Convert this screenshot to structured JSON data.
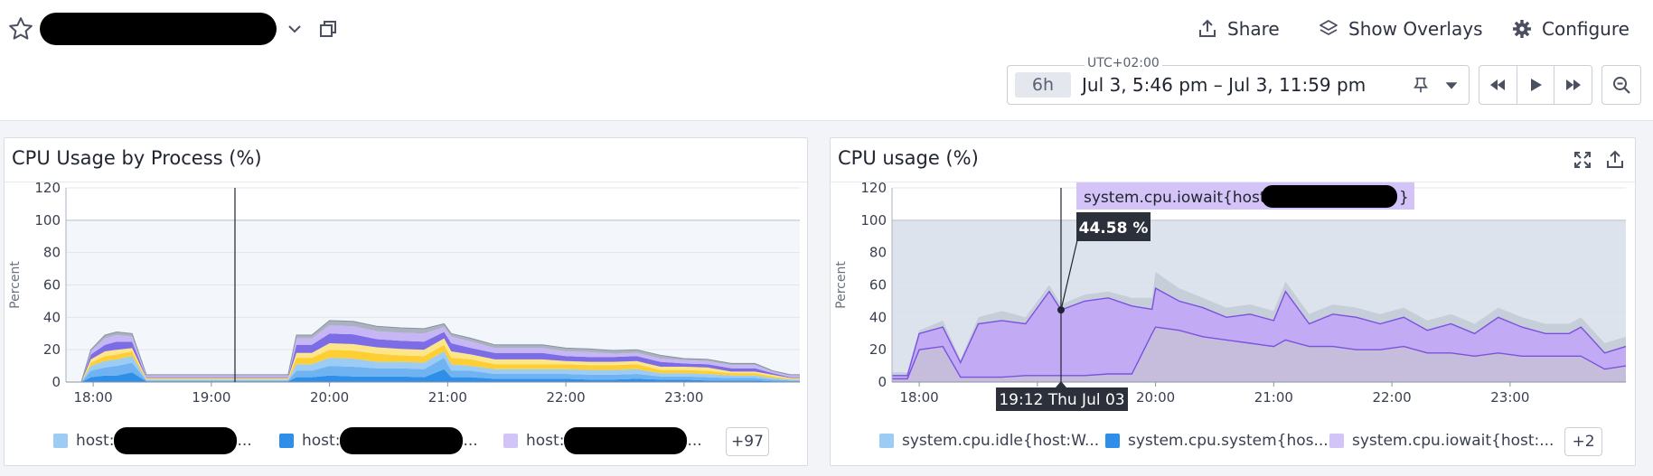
{
  "header": {
    "share_label": "Share",
    "overlays_label": "Show Overlays",
    "configure_label": "Configure"
  },
  "timeframe": {
    "timezone": "UTC+02:00",
    "range_chip": "6h",
    "range_text": "Jul 3, 5:46 pm – Jul 3, 11:59 pm"
  },
  "widget1": {
    "title": "CPU Usage by Process (%)",
    "legend": [
      {
        "prefix": "host:",
        "suffix": "...",
        "color": "#9ccbf3"
      },
      {
        "prefix": "host:",
        "suffix": "...",
        "color": "#2f8fe8"
      },
      {
        "prefix": "host:",
        "suffix": "...",
        "color": "#d3c4f7"
      }
    ],
    "more_label": "+97"
  },
  "widget2": {
    "title": "CPU usage (%)",
    "legend": [
      {
        "label": "system.cpu.idle{host:W...",
        "color": "#9ccbf3"
      },
      {
        "label": "system.cpu.system{hos...",
        "color": "#2f8fe8"
      },
      {
        "label": "system.cpu.iowait{host:...",
        "color": "#d3c4f7"
      }
    ],
    "more_label": "+2",
    "tooltip": {
      "series_prefix": "system.cpu.iowait{host",
      "series_suffix": "}",
      "value": "44.58 %",
      "time_label": "19:12 Thu Jul 03"
    }
  },
  "chart_data": [
    {
      "type": "area",
      "title": "CPU Usage by Process (%)",
      "ylabel": "Percent",
      "ylim": [
        0,
        120
      ],
      "yticks": [
        0,
        20,
        40,
        60,
        80,
        100,
        120
      ],
      "xticks": [
        "18:00",
        "19:00",
        "20:00",
        "21:00",
        "22:00",
        "23:00"
      ],
      "x": [
        17.77,
        17.9,
        17.98,
        18.1,
        18.2,
        18.33,
        18.45,
        18.7,
        19.0,
        19.3,
        19.5,
        19.65,
        19.72,
        19.85,
        20.0,
        20.2,
        20.4,
        20.6,
        20.8,
        20.97,
        21.03,
        21.2,
        21.4,
        21.6,
        21.8,
        22.0,
        22.2,
        22.4,
        22.6,
        22.8,
        23.0,
        23.2,
        23.4,
        23.6,
        23.75,
        23.9,
        23.98
      ],
      "series": [
        {
          "values": [
            0,
            0,
            3,
            4,
            4,
            6,
            0.5,
            0.5,
            0.5,
            0.5,
            0.5,
            0.5,
            3,
            3,
            4,
            3.5,
            3.5,
            3.5,
            3,
            8,
            3,
            3,
            2,
            2,
            2,
            2,
            1.5,
            1.5,
            2,
            1.5,
            1.5,
            1,
            1,
            1,
            0.5,
            0.5,
            0.5
          ]
        },
        {
          "values": [
            0,
            0,
            4,
            5,
            6,
            6,
            0.5,
            0.5,
            0.5,
            0.5,
            0.5,
            0.5,
            4,
            4,
            6,
            6,
            5,
            5,
            5,
            7,
            4,
            4,
            3,
            3,
            3,
            3,
            3,
            3,
            3,
            2,
            2,
            2,
            1.5,
            1.5,
            1,
            0.5,
            0.5
          ]
        },
        {
          "values": [
            0,
            0,
            3,
            4,
            4,
            4,
            0.5,
            0.5,
            0.5,
            0.5,
            0.5,
            0.5,
            4,
            4,
            5,
            5,
            4,
            4,
            4,
            4,
            4,
            3,
            3,
            3,
            3,
            3,
            3,
            3,
            3,
            2,
            2,
            2,
            1.5,
            1.5,
            1,
            0.5,
            0.5
          ]
        },
        {
          "values": [
            0,
            0,
            2,
            3,
            3,
            3,
            0.5,
            0.5,
            0.5,
            0.5,
            0.5,
            0.5,
            4,
            4,
            5,
            5,
            5,
            4,
            4,
            4,
            4,
            4,
            3,
            3,
            3,
            3,
            3,
            3,
            3,
            2,
            2,
            2,
            1.5,
            1.5,
            1,
            0.5,
            0.5
          ]
        },
        {
          "values": [
            0,
            0,
            2,
            3,
            3,
            2,
            0.5,
            0.5,
            0.5,
            0.5,
            0.5,
            0.5,
            3,
            3,
            4,
            4,
            4,
            4,
            4,
            4,
            4,
            3,
            3,
            3,
            3,
            2,
            2,
            2,
            2,
            2,
            2,
            2,
            1,
            1,
            1,
            0.5,
            0.5
          ]
        },
        {
          "values": [
            0,
            0,
            3,
            4,
            5,
            4,
            0.5,
            0.5,
            0.5,
            0.5,
            0.5,
            0.5,
            5,
            5,
            6,
            6,
            5,
            5,
            5,
            4,
            5,
            4,
            4,
            4,
            4,
            3,
            3,
            3,
            3,
            3,
            2,
            2,
            2,
            2,
            1,
            0.5,
            0.5
          ]
        },
        {
          "values": [
            0,
            0,
            2,
            4,
            4,
            3,
            1,
            1,
            1,
            1,
            1,
            1,
            4,
            4,
            5,
            5,
            5,
            5,
            5,
            3,
            4,
            4,
            3,
            3,
            3,
            3,
            3,
            2,
            2,
            2,
            2,
            2,
            2,
            2,
            1,
            1,
            1
          ]
        },
        {
          "values": [
            0,
            0,
            1,
            2,
            2,
            2,
            0.5,
            0.5,
            0.5,
            0.5,
            0.5,
            0.5,
            2,
            2,
            3,
            3,
            3,
            3,
            3,
            2,
            2,
            2,
            2,
            2,
            2,
            2,
            2,
            2,
            2,
            2,
            1,
            1,
            1,
            1,
            0.5,
            0.5,
            0.5
          ]
        }
      ],
      "colors": [
        "#2f8fe8",
        "#6fb3f2",
        "#9ccbf3",
        "#fdcf35",
        "#fde68a",
        "#7c6ce6",
        "#c7b6f5",
        "#aab2c0"
      ],
      "cursor_x": 19.2
    },
    {
      "type": "area",
      "title": "CPU usage (%)",
      "ylabel": "Percent",
      "ylim": [
        0,
        120
      ],
      "yticks": [
        0,
        20,
        40,
        60,
        80,
        100,
        120
      ],
      "xticks": [
        "18:00",
        "19:00",
        "20:00",
        "21:00",
        "22:00",
        "23:00"
      ],
      "x": [
        17.77,
        17.9,
        18.0,
        18.2,
        18.35,
        18.5,
        18.7,
        18.9,
        19.1,
        19.2,
        19.4,
        19.6,
        19.8,
        19.97,
        20.0,
        20.2,
        20.4,
        20.6,
        20.8,
        21.0,
        21.1,
        21.3,
        21.5,
        21.7,
        21.9,
        22.1,
        22.3,
        22.5,
        22.7,
        22.9,
        23.1,
        23.3,
        23.5,
        23.6,
        23.8,
        23.98
      ],
      "series": [
        {
          "name": "system.cpu.iowait",
          "values": [
            4,
            4,
            30,
            34,
            12,
            36,
            38,
            36,
            56,
            44.58,
            50,
            52,
            47,
            45,
            58,
            50,
            46,
            40,
            42,
            38,
            56,
            36,
            42,
            40,
            36,
            40,
            32,
            36,
            30,
            40,
            34,
            30,
            30,
            34,
            18,
            22
          ]
        },
        {
          "name": "system.cpu.idle",
          "values": [
            6,
            6,
            32,
            38,
            14,
            40,
            44,
            40,
            60,
            48,
            54,
            56,
            52,
            52,
            68,
            58,
            52,
            46,
            48,
            44,
            62,
            42,
            48,
            46,
            42,
            46,
            38,
            42,
            36,
            46,
            40,
            36,
            36,
            40,
            24,
            28
          ]
        },
        {
          "name": "system.cpu.system",
          "values": [
            2,
            2,
            20,
            22,
            3,
            3,
            3,
            4,
            4,
            4,
            4,
            5,
            5,
            30,
            34,
            32,
            28,
            26,
            24,
            22,
            26,
            22,
            22,
            20,
            20,
            22,
            18,
            18,
            16,
            18,
            16,
            16,
            16,
            16,
            8,
            10
          ]
        }
      ],
      "colors": [
        "#c3aaf5",
        "#c5ced9",
        "#7a52e0"
      ],
      "cursor_x": 19.2,
      "highlight_value": 44.58
    }
  ]
}
